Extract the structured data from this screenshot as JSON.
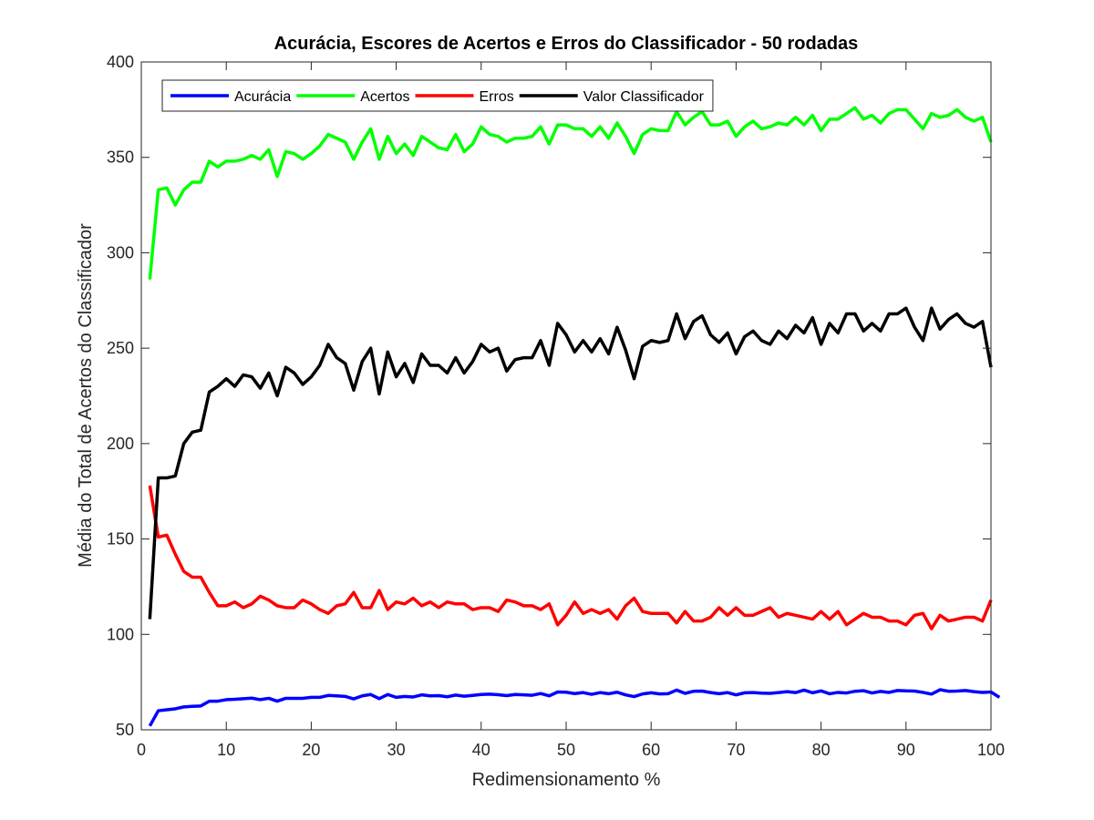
{
  "chart_data": {
    "type": "line",
    "title": "Acurácia, Escores de Acertos e Erros do Classificador - 50 rodadas",
    "xlabel": "Redimensionamento %",
    "ylabel": "Média do Total de Acertos do Classificador",
    "xlim": [
      0,
      100
    ],
    "ylim": [
      50,
      400
    ],
    "xticks": [
      0,
      10,
      20,
      30,
      40,
      50,
      60,
      70,
      80,
      90,
      100
    ],
    "yticks": [
      50,
      100,
      150,
      200,
      250,
      300,
      350,
      400
    ],
    "x_start": 1,
    "x_step": 1,
    "grid": false,
    "legend_position": "top-left",
    "series": [
      {
        "name": "Acurácia",
        "color": "#0000ff",
        "values": [
          52,
          60,
          60.5,
          61,
          62,
          62.3,
          62.5,
          65,
          65,
          65.8,
          66,
          66.3,
          66.6,
          65.8,
          66.5,
          65,
          66.5,
          66.5,
          66.5,
          67,
          67,
          68,
          67.8,
          67.5,
          66.2,
          67.8,
          68.5,
          66.3,
          68.5,
          67,
          67.5,
          67.2,
          68.3,
          67.8,
          67.9,
          67.3,
          68.2,
          67.6,
          68,
          68.5,
          68.7,
          68.4,
          67.9,
          68.5,
          68.3,
          68.1,
          69,
          67.8,
          69.8,
          69.7,
          69,
          69.5,
          68.6,
          69.5,
          68.9,
          69.7,
          68.3,
          67.4,
          68.8,
          69.4,
          68.8,
          68.9,
          70.8,
          69.1,
          70.2,
          70.3,
          69.5,
          68.9,
          69.5,
          68.3,
          69.4,
          69.5,
          69.2,
          69.1,
          69.5,
          70,
          69.5,
          70.8,
          69.4,
          70.4,
          68.9,
          69.6,
          69.3,
          70.2,
          70.5,
          69.3,
          70.1,
          69.6,
          70.6,
          70.4,
          70.3,
          69.6,
          68.7,
          71,
          70.2,
          70.3,
          70.6,
          70,
          69.6,
          69.8,
          67
        ]
      },
      {
        "name": "Acertos",
        "color": "#00ff00",
        "values": [
          286,
          333,
          334,
          325,
          333,
          337,
          337,
          348,
          345,
          348,
          348,
          349,
          351,
          349,
          354,
          340,
          353,
          352,
          349,
          352,
          356,
          362,
          360,
          358,
          349,
          358,
          365,
          349,
          361,
          352,
          357,
          351,
          361,
          358,
          355,
          354,
          362,
          353,
          357,
          366,
          362,
          361,
          358,
          360,
          360,
          361,
          366,
          357,
          367,
          367,
          365,
          365,
          361,
          366,
          360,
          368,
          361,
          352,
          362,
          365,
          364,
          364,
          374,
          367,
          371,
          374,
          367,
          367,
          369,
          361,
          366,
          369,
          365,
          366,
          368,
          367,
          371,
          367,
          372,
          364,
          370,
          370,
          373,
          376,
          370,
          372,
          368,
          373,
          375,
          375,
          370,
          365,
          373,
          371,
          372,
          375,
          371,
          369,
          371,
          358
        ]
      },
      {
        "name": "Erros",
        "color": "#ff0000",
        "values": [
          178,
          151,
          152,
          142,
          133,
          130,
          130,
          122,
          115,
          115,
          117,
          114,
          116,
          120,
          118,
          115,
          114,
          114,
          118,
          116,
          113,
          111,
          115,
          116,
          122,
          114,
          114,
          123,
          113,
          117,
          116,
          119,
          115,
          117,
          114,
          117,
          116,
          116,
          113,
          114,
          114,
          112,
          118,
          117,
          115,
          115,
          113,
          116,
          105,
          110,
          117,
          111,
          113,
          111,
          113,
          108,
          115,
          119,
          112,
          111,
          111,
          111,
          106,
          112,
          107,
          107,
          109,
          114,
          110,
          114,
          110,
          110,
          112,
          114,
          109,
          111,
          110,
          109,
          108,
          112,
          108,
          112,
          105,
          108,
          111,
          109,
          109,
          107,
          107,
          105,
          110,
          111,
          103,
          110,
          107,
          108,
          109,
          109,
          107,
          118
        ]
      },
      {
        "name": "Valor Classificador",
        "color": "#000000",
        "values": [
          108,
          182,
          182,
          183,
          200,
          206,
          207,
          227,
          230,
          234,
          230,
          236,
          235,
          229,
          237,
          225,
          240,
          237,
          231,
          235,
          241,
          252,
          245,
          242,
          228,
          243,
          250,
          226,
          248,
          235,
          242,
          232,
          247,
          241,
          241,
          237,
          245,
          237,
          243,
          252,
          248,
          250,
          238,
          244,
          245,
          245,
          254,
          241,
          263,
          257,
          248,
          254,
          248,
          255,
          247,
          261,
          249,
          234,
          251,
          254,
          253,
          254,
          268,
          255,
          264,
          267,
          257,
          253,
          258,
          247,
          256,
          259,
          254,
          252,
          259,
          255,
          262,
          258,
          266,
          252,
          263,
          258,
          268,
          268,
          259,
          263,
          259,
          268,
          268,
          271,
          261,
          254,
          271,
          260,
          265,
          268,
          263,
          261,
          264,
          240
        ]
      }
    ]
  }
}
